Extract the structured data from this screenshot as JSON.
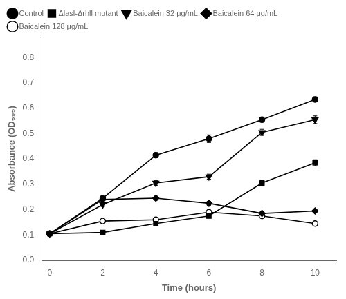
{
  "chart_data": {
    "type": "line",
    "x": [
      0,
      2,
      4,
      6,
      8,
      10
    ],
    "series": [
      {
        "name": "Control",
        "color": "#000000",
        "marker": "circle",
        "values": [
          0.105,
          0.245,
          0.415,
          0.48,
          0.555,
          0.635
        ],
        "errors": [
          0.005,
          0.008,
          0.01,
          0.015,
          0.01,
          0.01
        ]
      },
      {
        "name": "Δlasl-Δrhll mutant",
        "color": "#000000",
        "marker": "square",
        "values": [
          0.105,
          0.11,
          0.145,
          0.175,
          0.305,
          0.385
        ],
        "errors": [
          0.005,
          0.005,
          0.008,
          0.008,
          0.01,
          0.012
        ]
      },
      {
        "name": "Baicalein 32 μg/mL",
        "color": "#000000",
        "marker": "triangle_down",
        "values": [
          0.105,
          0.22,
          0.305,
          0.33,
          0.505,
          0.555
        ],
        "errors": [
          0.005,
          0.008,
          0.01,
          0.01,
          0.012,
          0.015
        ]
      },
      {
        "name": "Baicalein 64 μg/mL",
        "color": "#000000",
        "marker": "diamond",
        "values": [
          0.105,
          0.24,
          0.245,
          0.225,
          0.185,
          0.195
        ],
        "errors": [
          0.005,
          0.008,
          0.008,
          0.008,
          0.008,
          0.008
        ]
      },
      {
        "name": "Baicalein 128 μg/mL",
        "color": "#000000",
        "marker": "circle_open",
        "values": [
          0.105,
          0.155,
          0.16,
          0.19,
          0.175,
          0.145
        ],
        "errors": [
          0.005,
          0.006,
          0.006,
          0.006,
          0.006,
          0.006
        ]
      }
    ],
    "xlabel": "Time (hours)",
    "ylabel": "Absorbance (OD₅₉₅)",
    "xlim": [
      -0.3,
      10.8
    ],
    "ylim": [
      0,
      0.88
    ],
    "xticks": [
      0,
      2,
      4,
      6,
      8,
      10
    ],
    "yticks": [
      {
        "value": 0,
        "label": "0.0"
      },
      0.1,
      0.2,
      0.3,
      0.4,
      0.5,
      0.6,
      0.7,
      0.8
    ],
    "grid": false,
    "legend": "upper left"
  }
}
